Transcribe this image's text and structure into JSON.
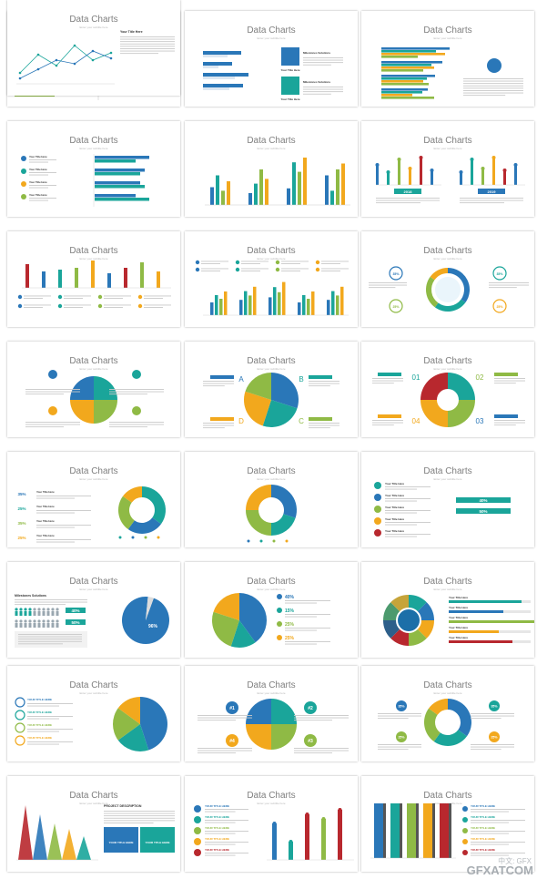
{
  "slide_title": "Data Charts",
  "slide_subtitle": "Enter your subtitle here",
  "labels": {
    "pct30": "30%",
    "pct15": "15%",
    "y2018": "2018",
    "y2019": "2019",
    "pct40": "40%",
    "pct50": "50%",
    "pct35": "35%",
    "pct25": "25%",
    "n1": "#1",
    "n2": "#2",
    "n3": "#3",
    "n4": "#4",
    "pct96": "96%",
    "your_title": "YOUR TITLE HERE",
    "project_description": "PROJECT DESCRIPTION",
    "title_here": "Your Title Here",
    "milestones": "Milestones Solutions",
    "letters": [
      "A",
      "B",
      "C",
      "D"
    ],
    "nums": [
      "01",
      "02",
      "03",
      "04"
    ]
  },
  "watermark": {
    "main": "GFXATCOM",
    "sub": "中文: GFX"
  },
  "colors": {
    "teal": "#1aa59a",
    "blue": "#2a77b8",
    "yellow": "#f2a81d",
    "green": "#8fba45",
    "red": "#b8282e",
    "grey": "#8a8a8a"
  }
}
